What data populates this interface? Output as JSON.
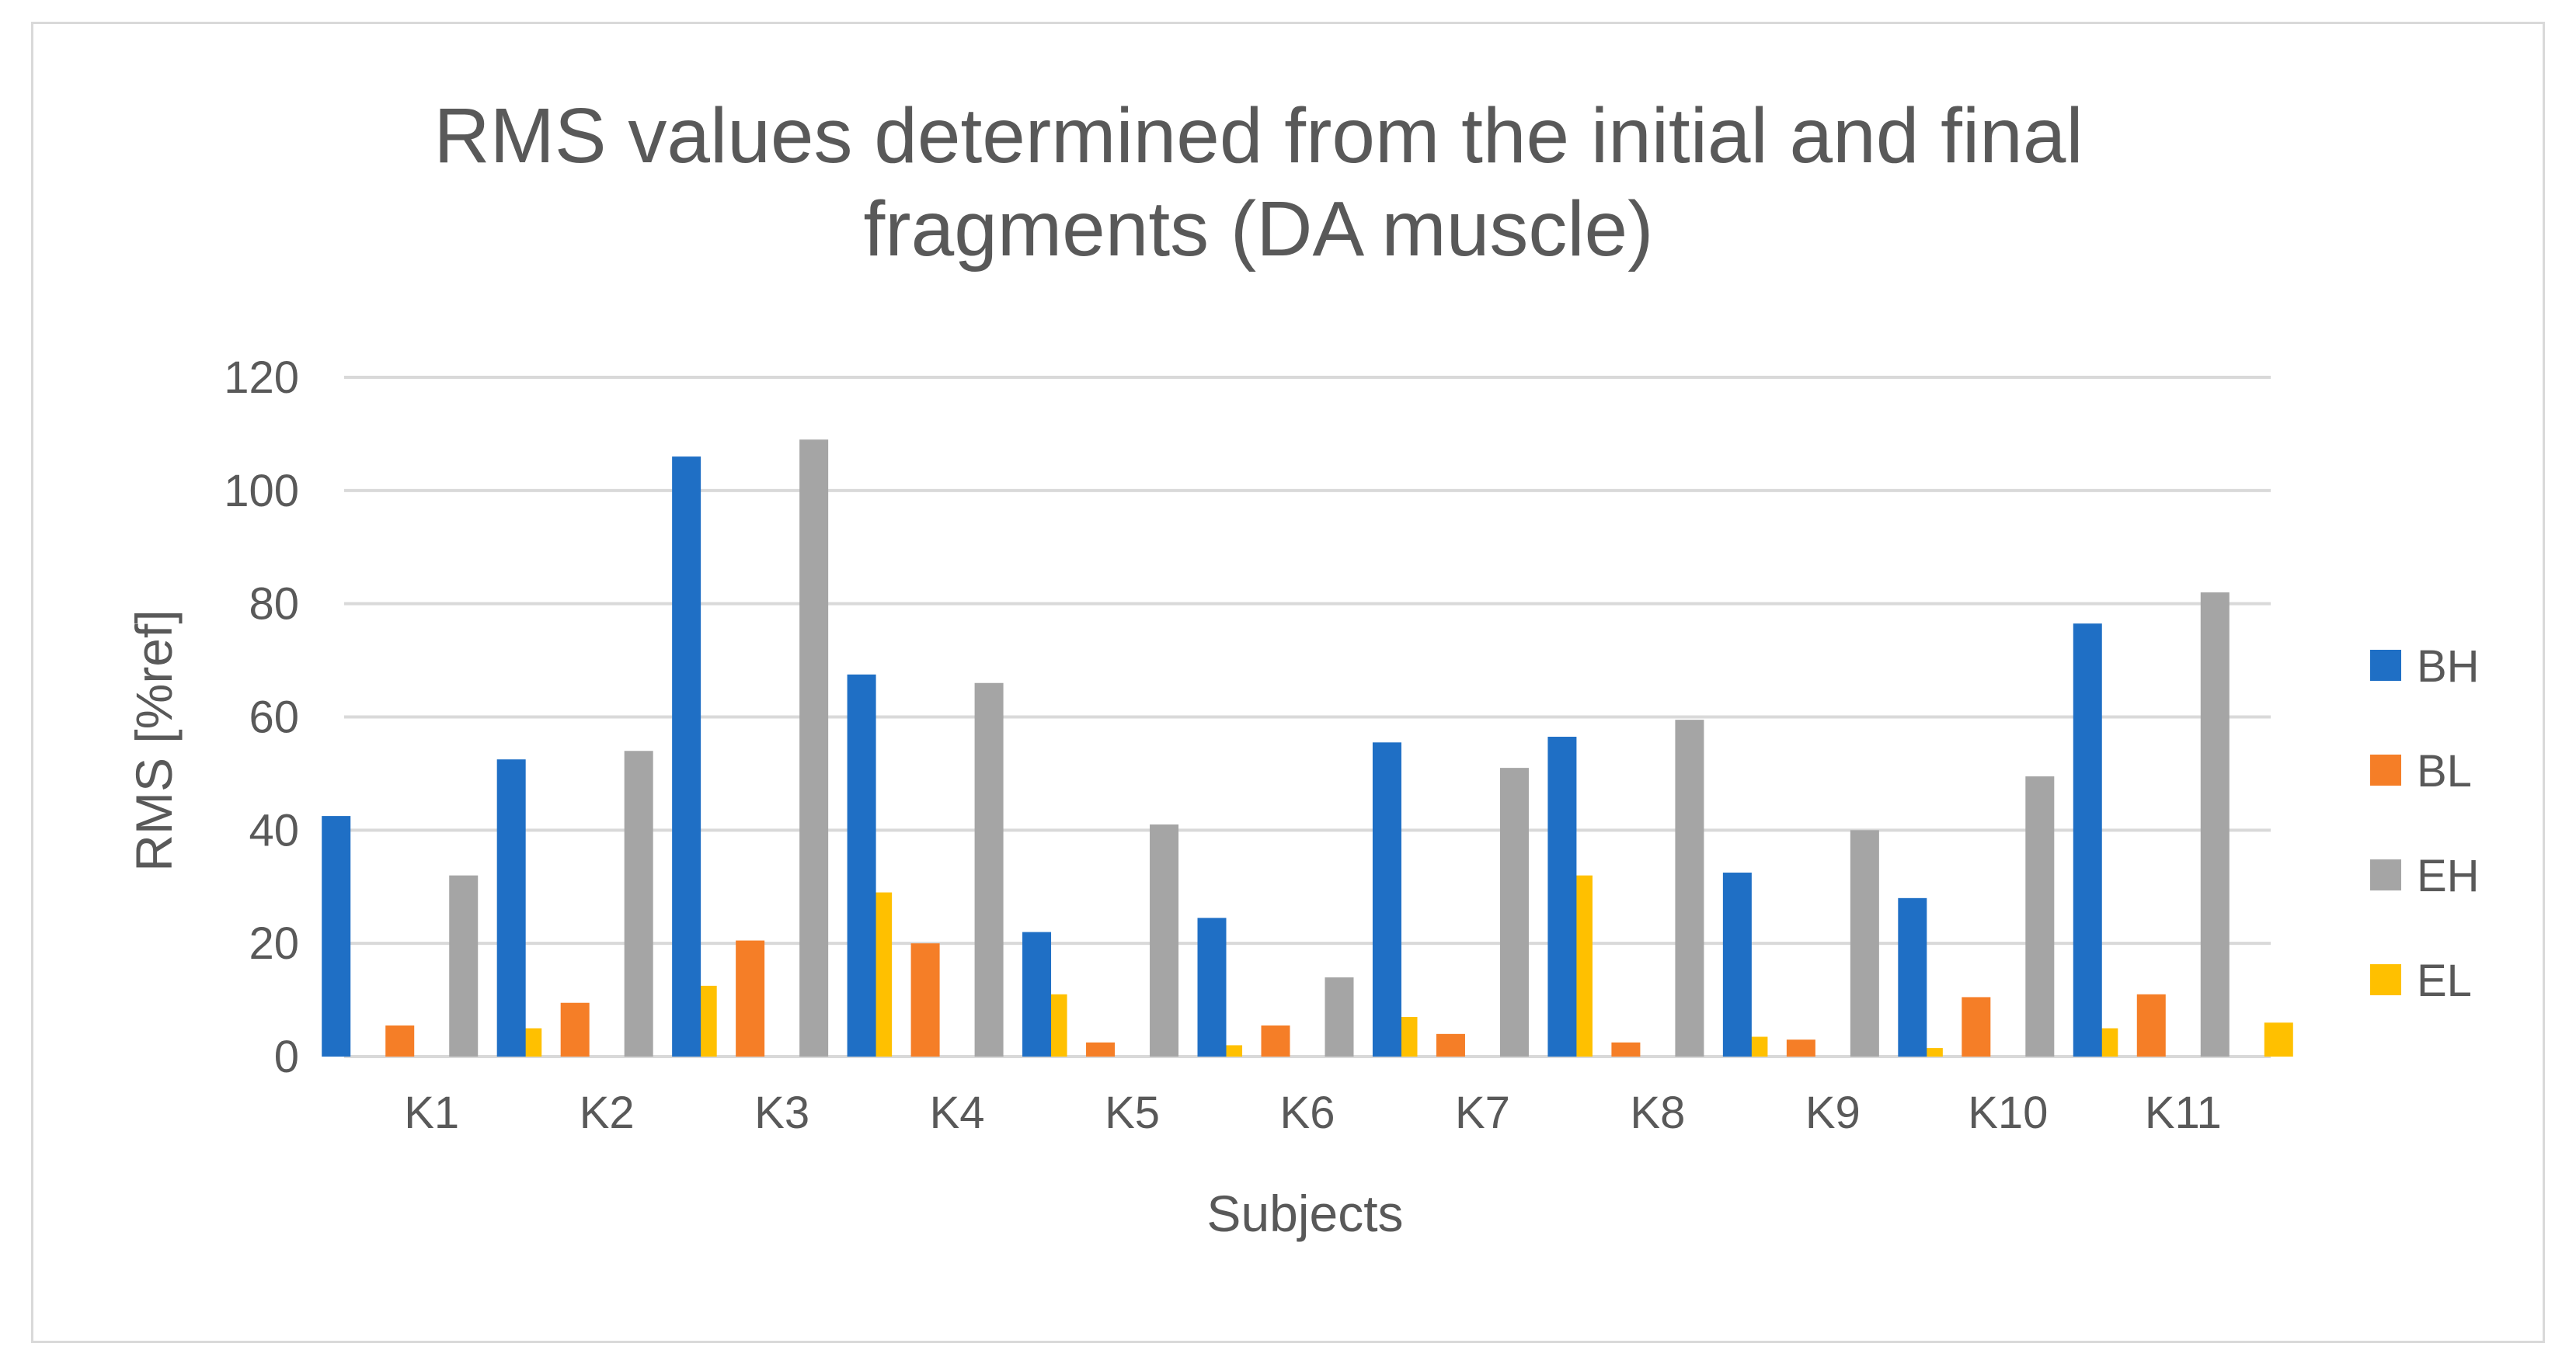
{
  "chart_data": {
    "type": "bar",
    "title_line1": "RMS values determined from the initial and final",
    "title_line2": "fragments (DA muscle)",
    "xlabel": "Subjects",
    "ylabel": "RMS [%ref]",
    "ylim": [
      0,
      120
    ],
    "yticks": [
      0,
      20,
      40,
      60,
      80,
      100,
      120
    ],
    "grid": true,
    "legend_position": "right",
    "categories": [
      "K1",
      "K2",
      "K3",
      "K4",
      "K5",
      "K6",
      "K7",
      "K8",
      "K9",
      "K10",
      "K11"
    ],
    "series": [
      {
        "name": "BH",
        "color": "#1f6fc5",
        "values": [
          42.5,
          52.5,
          106,
          67.5,
          22,
          24.5,
          55.5,
          56.5,
          32.5,
          28,
          76.5
        ]
      },
      {
        "name": "BL",
        "color": "#f57e27",
        "values": [
          5.5,
          9.5,
          20.5,
          20,
          2.5,
          5.5,
          4,
          2.5,
          3,
          10.5,
          11
        ]
      },
      {
        "name": "EH",
        "color": "#a5a5a5",
        "values": [
          32,
          54,
          109,
          66,
          41,
          14,
          51,
          59.5,
          40,
          49.5,
          82
        ]
      },
      {
        "name": "EL",
        "color": "#ffc000",
        "values": [
          5,
          12.5,
          29,
          11,
          2,
          7,
          32,
          3.5,
          1.5,
          5,
          6
        ]
      }
    ]
  }
}
